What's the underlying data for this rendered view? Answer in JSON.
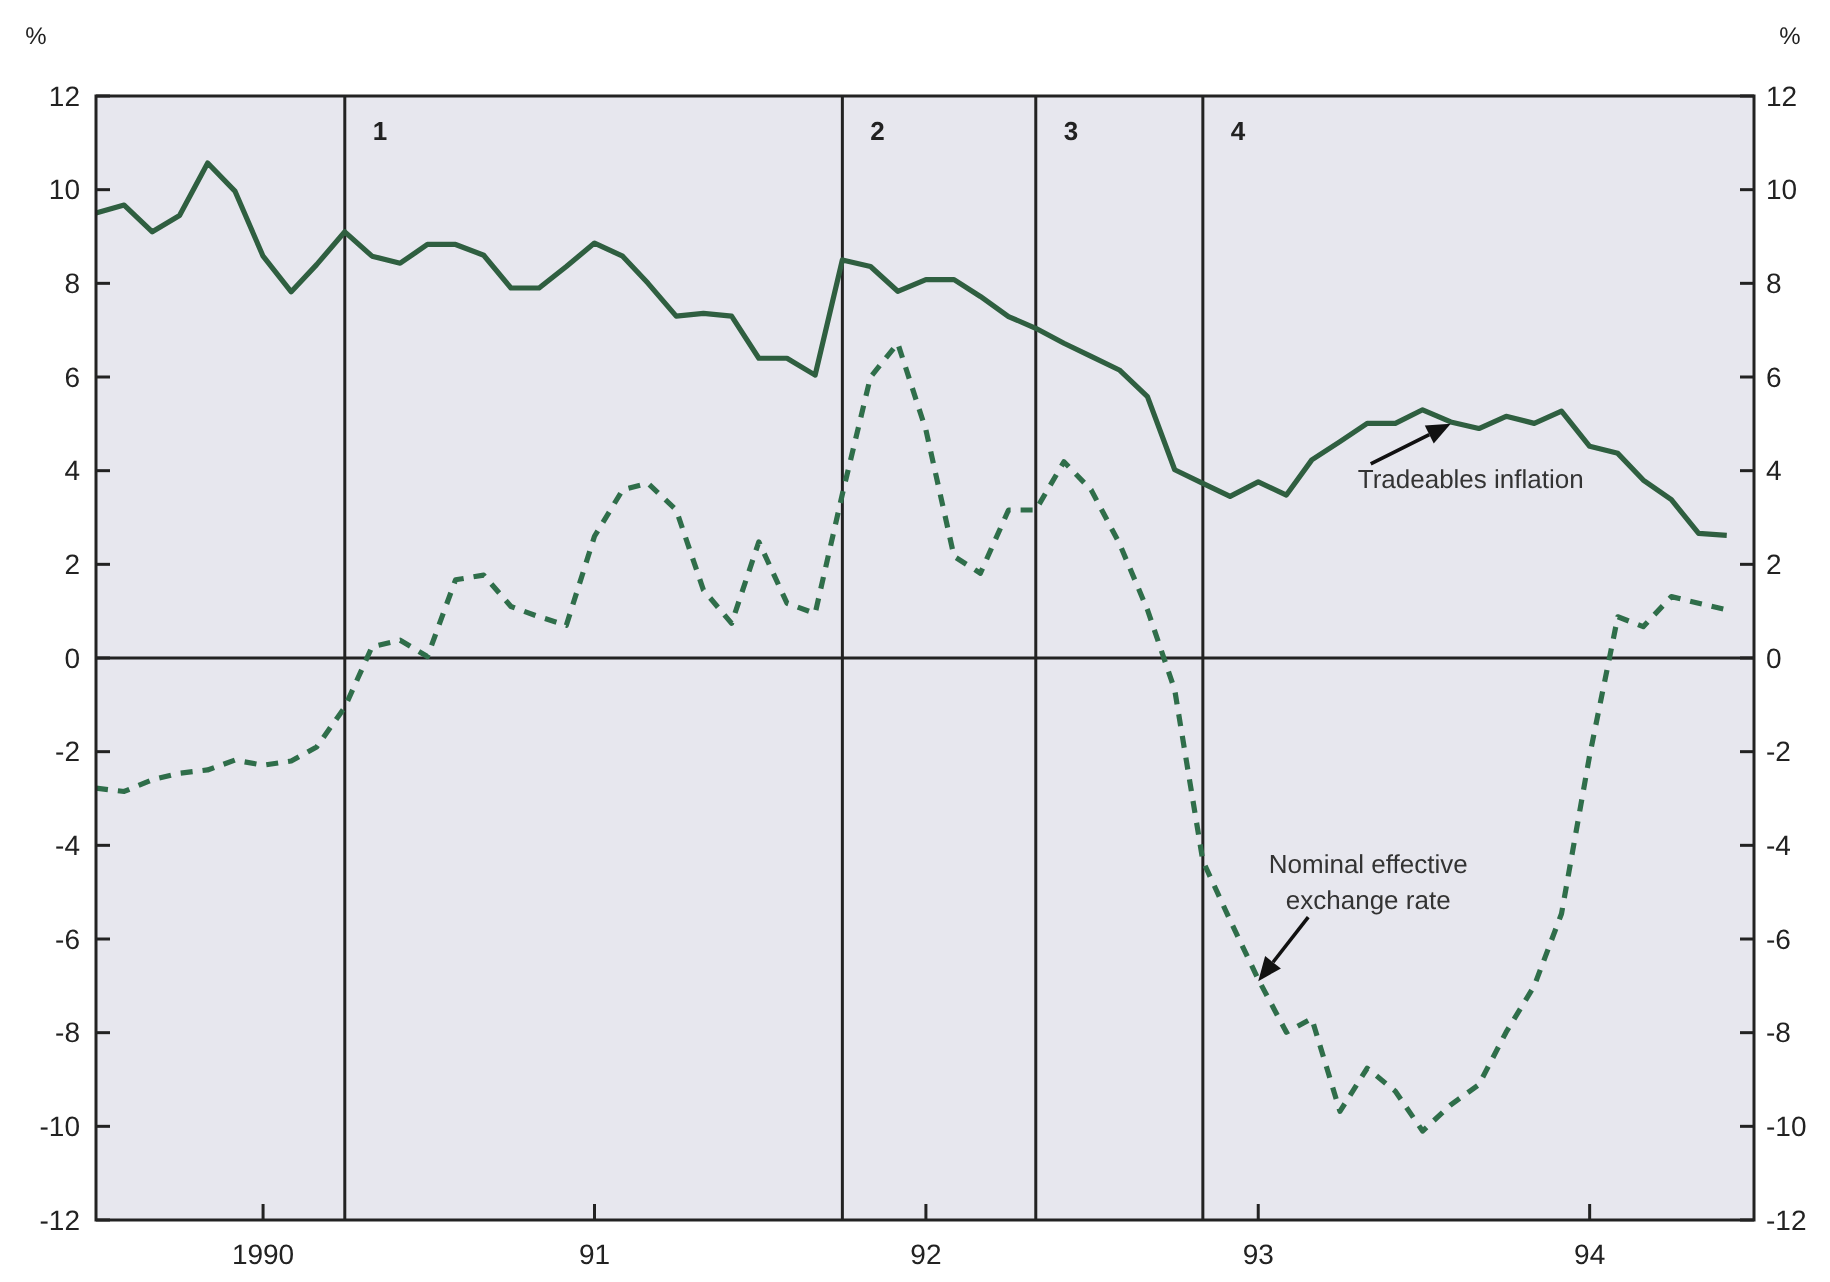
{
  "chart_data": {
    "type": "line",
    "ylabel": "%",
    "y2label": "%",
    "x": [
      "1989-07",
      "1989-08",
      "1989-09",
      "1989-10",
      "1989-11",
      "1989-12",
      "1990-01",
      "1990-02",
      "1990-03",
      "1990-04",
      "1990-05",
      "1990-06",
      "1990-07",
      "1990-08",
      "1990-09",
      "1990-10",
      "1990-11",
      "1990-12",
      "1991-01",
      "1991-02",
      "1991-03",
      "1991-04",
      "1991-05",
      "1991-06",
      "1991-07",
      "1991-08",
      "1991-09",
      "1991-10",
      "1991-11",
      "1991-12",
      "1992-01",
      "1992-02",
      "1992-03",
      "1992-04",
      "1992-05",
      "1992-06",
      "1992-07",
      "1992-08",
      "1992-09",
      "1992-10",
      "1992-11",
      "1992-12",
      "1993-01",
      "1993-02",
      "1993-03",
      "1993-04",
      "1993-05",
      "1993-06",
      "1993-07",
      "1993-08",
      "1993-09",
      "1993-10",
      "1993-11",
      "1993-12",
      "1994-01",
      "1994-02",
      "1994-03",
      "1994-04",
      "1994-05",
      "1994-06"
    ],
    "series": [
      {
        "color": "#2f5f40",
        "line_style": "solid",
        "values": [
          9.5,
          9.67,
          9.1,
          9.45,
          10.57,
          9.97,
          8.58,
          7.82,
          8.4,
          9.1,
          8.58,
          8.43,
          8.83,
          8.83,
          8.6,
          7.9,
          7.9,
          8.36,
          8.86,
          8.58,
          8.0,
          7.3,
          7.36,
          7.3,
          6.4,
          6.4,
          6.04,
          8.5,
          8.36,
          7.83,
          8.08,
          8.08,
          7.72,
          7.29,
          7.04,
          6.72,
          6.44,
          6.15,
          5.58,
          4.02,
          3.73,
          3.45,
          3.76,
          3.48,
          4.23,
          4.62,
          5.01,
          5.01,
          5.3,
          5.04,
          4.9,
          5.16,
          5.01,
          5.27,
          4.52,
          4.37,
          3.8,
          3.38,
          2.66,
          2.62
        ]
      },
      {
        "color": "#2f6e4a",
        "line_style": "dashed",
        "values": [
          -2.78,
          -2.85,
          -2.6,
          -2.46,
          -2.39,
          -2.18,
          -2.29,
          -2.2,
          -1.9,
          -1.05,
          0.24,
          0.38,
          0.03,
          1.67,
          1.77,
          1.1,
          0.88,
          0.7,
          2.6,
          3.59,
          3.73,
          3.16,
          1.45,
          0.74,
          2.48,
          1.17,
          0.95,
          3.5,
          6.0,
          6.72,
          4.87,
          2.17,
          1.81,
          3.16,
          3.16,
          4.19,
          3.59,
          2.45,
          1.03,
          -0.68,
          -4.33,
          -5.6,
          -6.86,
          -7.99,
          -7.7,
          -9.68,
          -8.76,
          -9.25,
          -10.1,
          -9.54,
          -9.11,
          -7.99,
          -7.0,
          -5.46,
          -2.08,
          0.88,
          0.67,
          1.31,
          1.17,
          1.03
        ]
      }
    ],
    "xlim": [
      "1989-07",
      "1994-07"
    ],
    "xticks": [
      {
        "value": "1990",
        "label": "1990"
      },
      {
        "value": "1991",
        "label": "91"
      },
      {
        "value": "1992",
        "label": "92"
      },
      {
        "value": "1993",
        "label": "93"
      },
      {
        "value": "1994",
        "label": "94"
      }
    ],
    "ylim": [
      -12,
      12
    ],
    "yticks": [
      -12,
      -10,
      -8,
      -6,
      -4,
      -2,
      0,
      2,
      4,
      6,
      8,
      10,
      12
    ],
    "y2lim": [
      -12,
      12
    ],
    "y2ticks": [
      -12,
      -10,
      -8,
      -6,
      -4,
      -2,
      0,
      2,
      4,
      6,
      8,
      10,
      12
    ],
    "ref_lines": [
      {
        "axis": "y",
        "value": 0,
        "label": null
      },
      {
        "axis": "x",
        "value": "1990-04",
        "label": "1"
      },
      {
        "axis": "x",
        "value": "1991-10",
        "label": "2"
      },
      {
        "axis": "x",
        "value": "1992-05",
        "label": "3"
      },
      {
        "axis": "x",
        "value": "1992-11",
        "label": "4"
      }
    ],
    "annotations": [
      {
        "text": "Tradeables inflation",
        "x": "1993-08",
        "y": 5.0
      },
      {
        "text": "Nominal effective\nexchange rate",
        "x": "1993-01",
        "y": -6.9
      }
    ],
    "grid": false,
    "marker": "none"
  }
}
